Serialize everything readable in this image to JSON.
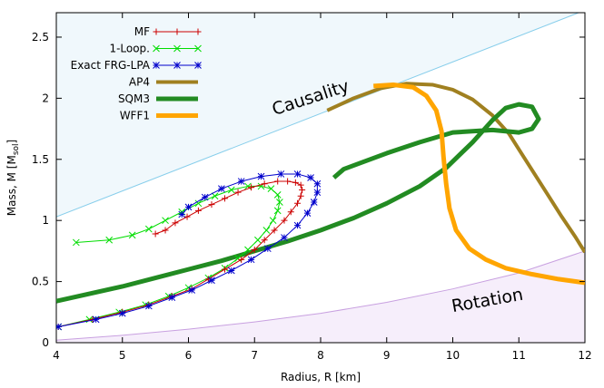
{
  "chart_data": {
    "type": "line",
    "xlabel": "Radius, R [km]",
    "ylabel_main": "Mass, M [M",
    "ylabel_sub": "sol",
    "ylabel_close": "]",
    "xlim": [
      4,
      12
    ],
    "ylim": [
      0,
      2.7
    ],
    "xticks": [
      4,
      5,
      6,
      7,
      8,
      9,
      10,
      11,
      12
    ],
    "yticks": [
      0,
      0.5,
      1,
      1.5,
      2,
      2.5
    ],
    "xtick_labels": [
      "4",
      "5",
      "6",
      "7",
      "8",
      "9",
      "10",
      "11",
      "12"
    ],
    "ytick_labels": [
      "0",
      "0.5",
      "1",
      "1.5",
      "2",
      "2.5"
    ],
    "regions": [
      {
        "name": "causality",
        "label": "Causality",
        "label_pos": [
          7.3,
          1.86
        ],
        "label_angle_deg": -18,
        "color": "#87ceeb",
        "fill": "#f0f8fc",
        "boundary": [
          [
            4,
            1.03
          ],
          [
            12,
            2.72
          ]
        ]
      },
      {
        "name": "rotation",
        "label": "Rotation",
        "label_pos": [
          10.0,
          0.25
        ],
        "label_angle_deg": -10,
        "color": "#c8a0e0",
        "fill": "#f6eefb",
        "boundary": [
          [
            4,
            0.02
          ],
          [
            5,
            0.06
          ],
          [
            6,
            0.11
          ],
          [
            7,
            0.17
          ],
          [
            8,
            0.24
          ],
          [
            9,
            0.33
          ],
          [
            10,
            0.44
          ],
          [
            11,
            0.57
          ],
          [
            12,
            0.75
          ]
        ]
      }
    ],
    "series": [
      {
        "name": "MF",
        "legend": "MF",
        "color": "#cc0000",
        "marker": "plus",
        "width": 1,
        "points": [
          [
            4.03,
            0.13
          ],
          [
            4.55,
            0.19
          ],
          [
            5.0,
            0.25
          ],
          [
            5.4,
            0.31
          ],
          [
            5.75,
            0.38
          ],
          [
            6.05,
            0.44
          ],
          [
            6.3,
            0.52
          ],
          [
            6.55,
            0.6
          ],
          [
            6.8,
            0.68
          ],
          [
            7.0,
            0.76
          ],
          [
            7.15,
            0.84
          ],
          [
            7.3,
            0.92
          ],
          [
            7.45,
            1.0
          ],
          [
            7.55,
            1.07
          ],
          [
            7.65,
            1.14
          ],
          [
            7.7,
            1.2
          ],
          [
            7.72,
            1.25
          ],
          [
            7.7,
            1.29
          ],
          [
            7.62,
            1.31
          ],
          [
            7.5,
            1.32
          ],
          [
            7.35,
            1.32
          ],
          [
            7.15,
            1.3
          ],
          [
            6.95,
            1.27
          ],
          [
            6.75,
            1.23
          ],
          [
            6.55,
            1.18
          ],
          [
            6.35,
            1.13
          ],
          [
            6.15,
            1.08
          ],
          [
            5.98,
            1.03
          ],
          [
            5.8,
            0.98
          ],
          [
            5.65,
            0.92
          ],
          [
            5.5,
            0.89
          ]
        ]
      },
      {
        "name": "1-Loop",
        "legend": "1-Loop.",
        "color": "#00dd00",
        "marker": "cross",
        "width": 1,
        "points": [
          [
            4.03,
            0.13
          ],
          [
            4.5,
            0.19
          ],
          [
            4.95,
            0.25
          ],
          [
            5.35,
            0.31
          ],
          [
            5.7,
            0.38
          ],
          [
            6.0,
            0.45
          ],
          [
            6.3,
            0.53
          ],
          [
            6.55,
            0.61
          ],
          [
            6.75,
            0.69
          ],
          [
            6.9,
            0.76
          ],
          [
            7.05,
            0.84
          ],
          [
            7.18,
            0.92
          ],
          [
            7.28,
            1.0
          ],
          [
            7.35,
            1.08
          ],
          [
            7.38,
            1.15
          ],
          [
            7.35,
            1.21
          ],
          [
            7.25,
            1.26
          ],
          [
            7.1,
            1.28
          ],
          [
            6.9,
            1.28
          ],
          [
            6.65,
            1.25
          ],
          [
            6.4,
            1.2
          ],
          [
            6.15,
            1.14
          ],
          [
            5.9,
            1.07
          ],
          [
            5.65,
            1.0
          ],
          [
            5.4,
            0.93
          ],
          [
            5.15,
            0.88
          ],
          [
            4.8,
            0.84
          ],
          [
            4.3,
            0.82
          ]
        ]
      },
      {
        "name": "Exact FRG-LPA",
        "legend": "Exact FRG-LPA",
        "color": "#0000cc",
        "marker": "star",
        "width": 1,
        "points": [
          [
            4.03,
            0.13
          ],
          [
            4.6,
            0.19
          ],
          [
            5.0,
            0.24
          ],
          [
            5.4,
            0.3
          ],
          [
            5.75,
            0.37
          ],
          [
            6.05,
            0.43
          ],
          [
            6.35,
            0.51
          ],
          [
            6.65,
            0.59
          ],
          [
            6.95,
            0.68
          ],
          [
            7.2,
            0.77
          ],
          [
            7.45,
            0.86
          ],
          [
            7.65,
            0.96
          ],
          [
            7.8,
            1.06
          ],
          [
            7.9,
            1.15
          ],
          [
            7.95,
            1.23
          ],
          [
            7.95,
            1.3
          ],
          [
            7.85,
            1.35
          ],
          [
            7.65,
            1.38
          ],
          [
            7.4,
            1.38
          ],
          [
            7.1,
            1.36
          ],
          [
            6.8,
            1.32
          ],
          [
            6.5,
            1.26
          ],
          [
            6.25,
            1.19
          ],
          [
            6.0,
            1.11
          ],
          [
            5.9,
            1.05
          ]
        ]
      },
      {
        "name": "AP4",
        "legend": "AP4",
        "color": "#a08020",
        "marker": "none",
        "width": 4,
        "points": [
          [
            8.1,
            1.9
          ],
          [
            8.5,
            2.0
          ],
          [
            8.9,
            2.08
          ],
          [
            9.3,
            2.12
          ],
          [
            9.7,
            2.11
          ],
          [
            10.0,
            2.07
          ],
          [
            10.3,
            1.99
          ],
          [
            10.6,
            1.86
          ],
          [
            10.85,
            1.71
          ],
          [
            11.05,
            1.54
          ],
          [
            11.25,
            1.37
          ],
          [
            11.45,
            1.2
          ],
          [
            11.65,
            1.03
          ],
          [
            11.85,
            0.87
          ],
          [
            12.0,
            0.74
          ]
        ]
      },
      {
        "name": "SQM3",
        "legend": "SQM3",
        "color": "#228b22",
        "marker": "none",
        "width": 5,
        "points": [
          [
            4.0,
            0.34
          ],
          [
            4.5,
            0.4
          ],
          [
            5.0,
            0.46
          ],
          [
            5.5,
            0.53
          ],
          [
            6.0,
            0.6
          ],
          [
            6.5,
            0.67
          ],
          [
            7.0,
            0.75
          ],
          [
            7.5,
            0.83
          ],
          [
            8.0,
            0.92
          ],
          [
            8.5,
            1.02
          ],
          [
            9.0,
            1.14
          ],
          [
            9.5,
            1.28
          ],
          [
            9.9,
            1.43
          ],
          [
            10.3,
            1.64
          ],
          [
            10.6,
            1.82
          ],
          [
            10.8,
            1.92
          ],
          [
            11.0,
            1.95
          ],
          [
            11.2,
            1.93
          ],
          [
            11.3,
            1.83
          ],
          [
            11.2,
            1.75
          ],
          [
            11.0,
            1.72
          ],
          [
            10.6,
            1.74
          ],
          [
            10.0,
            1.72
          ],
          [
            9.5,
            1.64
          ],
          [
            9.0,
            1.55
          ],
          [
            8.6,
            1.47
          ],
          [
            8.35,
            1.42
          ],
          [
            8.2,
            1.35
          ]
        ]
      },
      {
        "name": "WFF1",
        "legend": "WFF1",
        "color": "#ffa500",
        "marker": "none",
        "width": 5,
        "points": [
          [
            8.8,
            2.1
          ],
          [
            9.1,
            2.11
          ],
          [
            9.4,
            2.09
          ],
          [
            9.6,
            2.02
          ],
          [
            9.75,
            1.9
          ],
          [
            9.83,
            1.73
          ],
          [
            9.86,
            1.52
          ],
          [
            9.9,
            1.3
          ],
          [
            9.95,
            1.1
          ],
          [
            10.05,
            0.92
          ],
          [
            10.25,
            0.77
          ],
          [
            10.5,
            0.68
          ],
          [
            10.8,
            0.61
          ],
          [
            11.2,
            0.56
          ],
          [
            11.6,
            0.52
          ],
          [
            12.0,
            0.49
          ]
        ]
      }
    ]
  }
}
